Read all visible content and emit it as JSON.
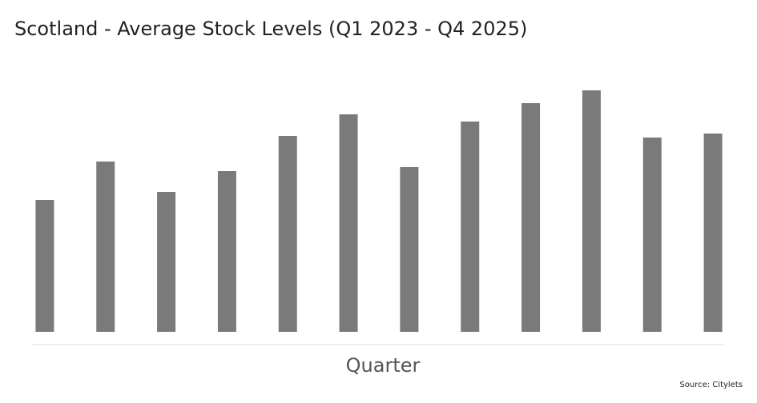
{
  "chart_data": {
    "type": "bar",
    "title": "Scotland - Average Stock Levels (Q1 2023 - Q4 2025)",
    "x_label": "Quarter",
    "source": "Source: Citylets",
    "categories": [
      null,
      null,
      null,
      null,
      null,
      null,
      null,
      null,
      null,
      null,
      null,
      null
    ],
    "values": [
      165,
      213,
      175,
      201,
      245,
      272,
      206,
      263,
      286,
      302,
      243,
      248
    ],
    "color": "#7a7a7a",
    "ylim": [
      0,
      320
    ],
    "grid": false
  }
}
